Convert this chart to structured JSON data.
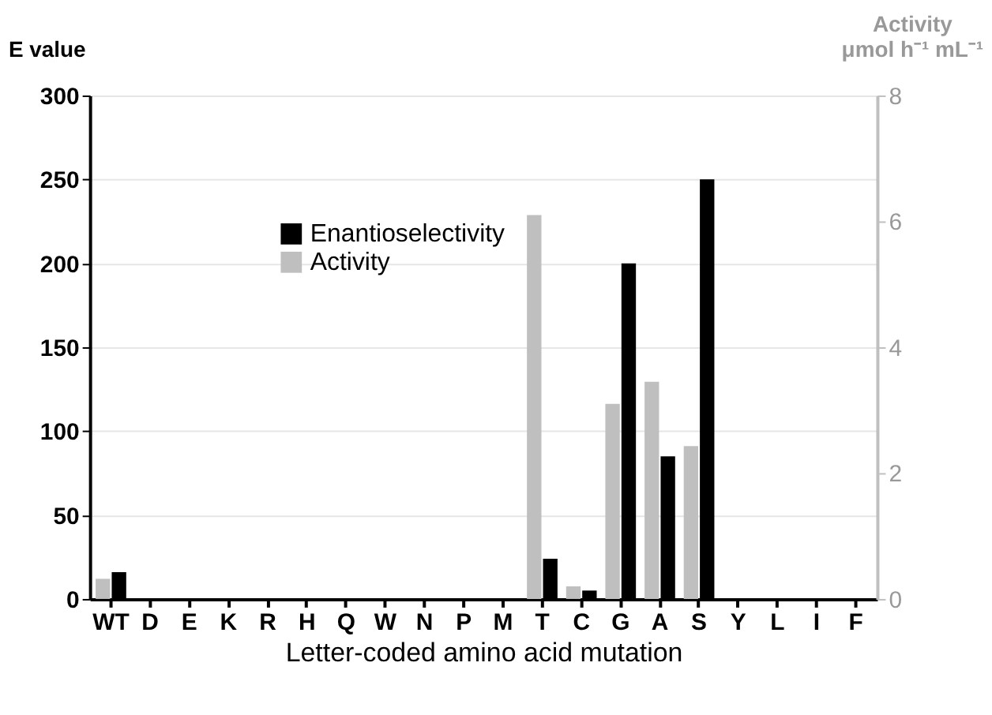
{
  "chart_data": {
    "type": "bar",
    "xlabel": "Letter-coded amino acid mutation",
    "ylabel": "E value",
    "y2label": "Activity\nμmol h⁻¹ mL⁻¹",
    "categories": [
      "WT",
      "D",
      "E",
      "K",
      "R",
      "H",
      "Q",
      "W",
      "N",
      "P",
      "M",
      "T",
      "C",
      "G",
      "A",
      "S",
      "Y",
      "L",
      "I",
      "F"
    ],
    "series": [
      {
        "name": "Enantioselectivity",
        "color": "#000000",
        "values": [
          16,
          0,
          0,
          0,
          0,
          0,
          0,
          0,
          0,
          0,
          0,
          24,
          5,
          200,
          85,
          250,
          0,
          0,
          0,
          0
        ]
      },
      {
        "name": "Activity",
        "color": "#bfbfbf",
        "axis": "y2",
        "values": [
          0.32,
          0,
          0,
          0,
          0,
          0,
          0,
          0,
          0,
          0,
          0,
          6.1,
          0.2,
          3.1,
          3.45,
          2.43,
          0,
          0,
          0,
          0
        ]
      }
    ],
    "ylim": [
      0,
      300
    ],
    "yticks": [
      0,
      50,
      100,
      150,
      200,
      250,
      300
    ],
    "y2lim": [
      0,
      8
    ],
    "y2ticks": [
      0,
      2,
      4,
      6,
      8
    ],
    "grid": "y",
    "legend": "center"
  }
}
